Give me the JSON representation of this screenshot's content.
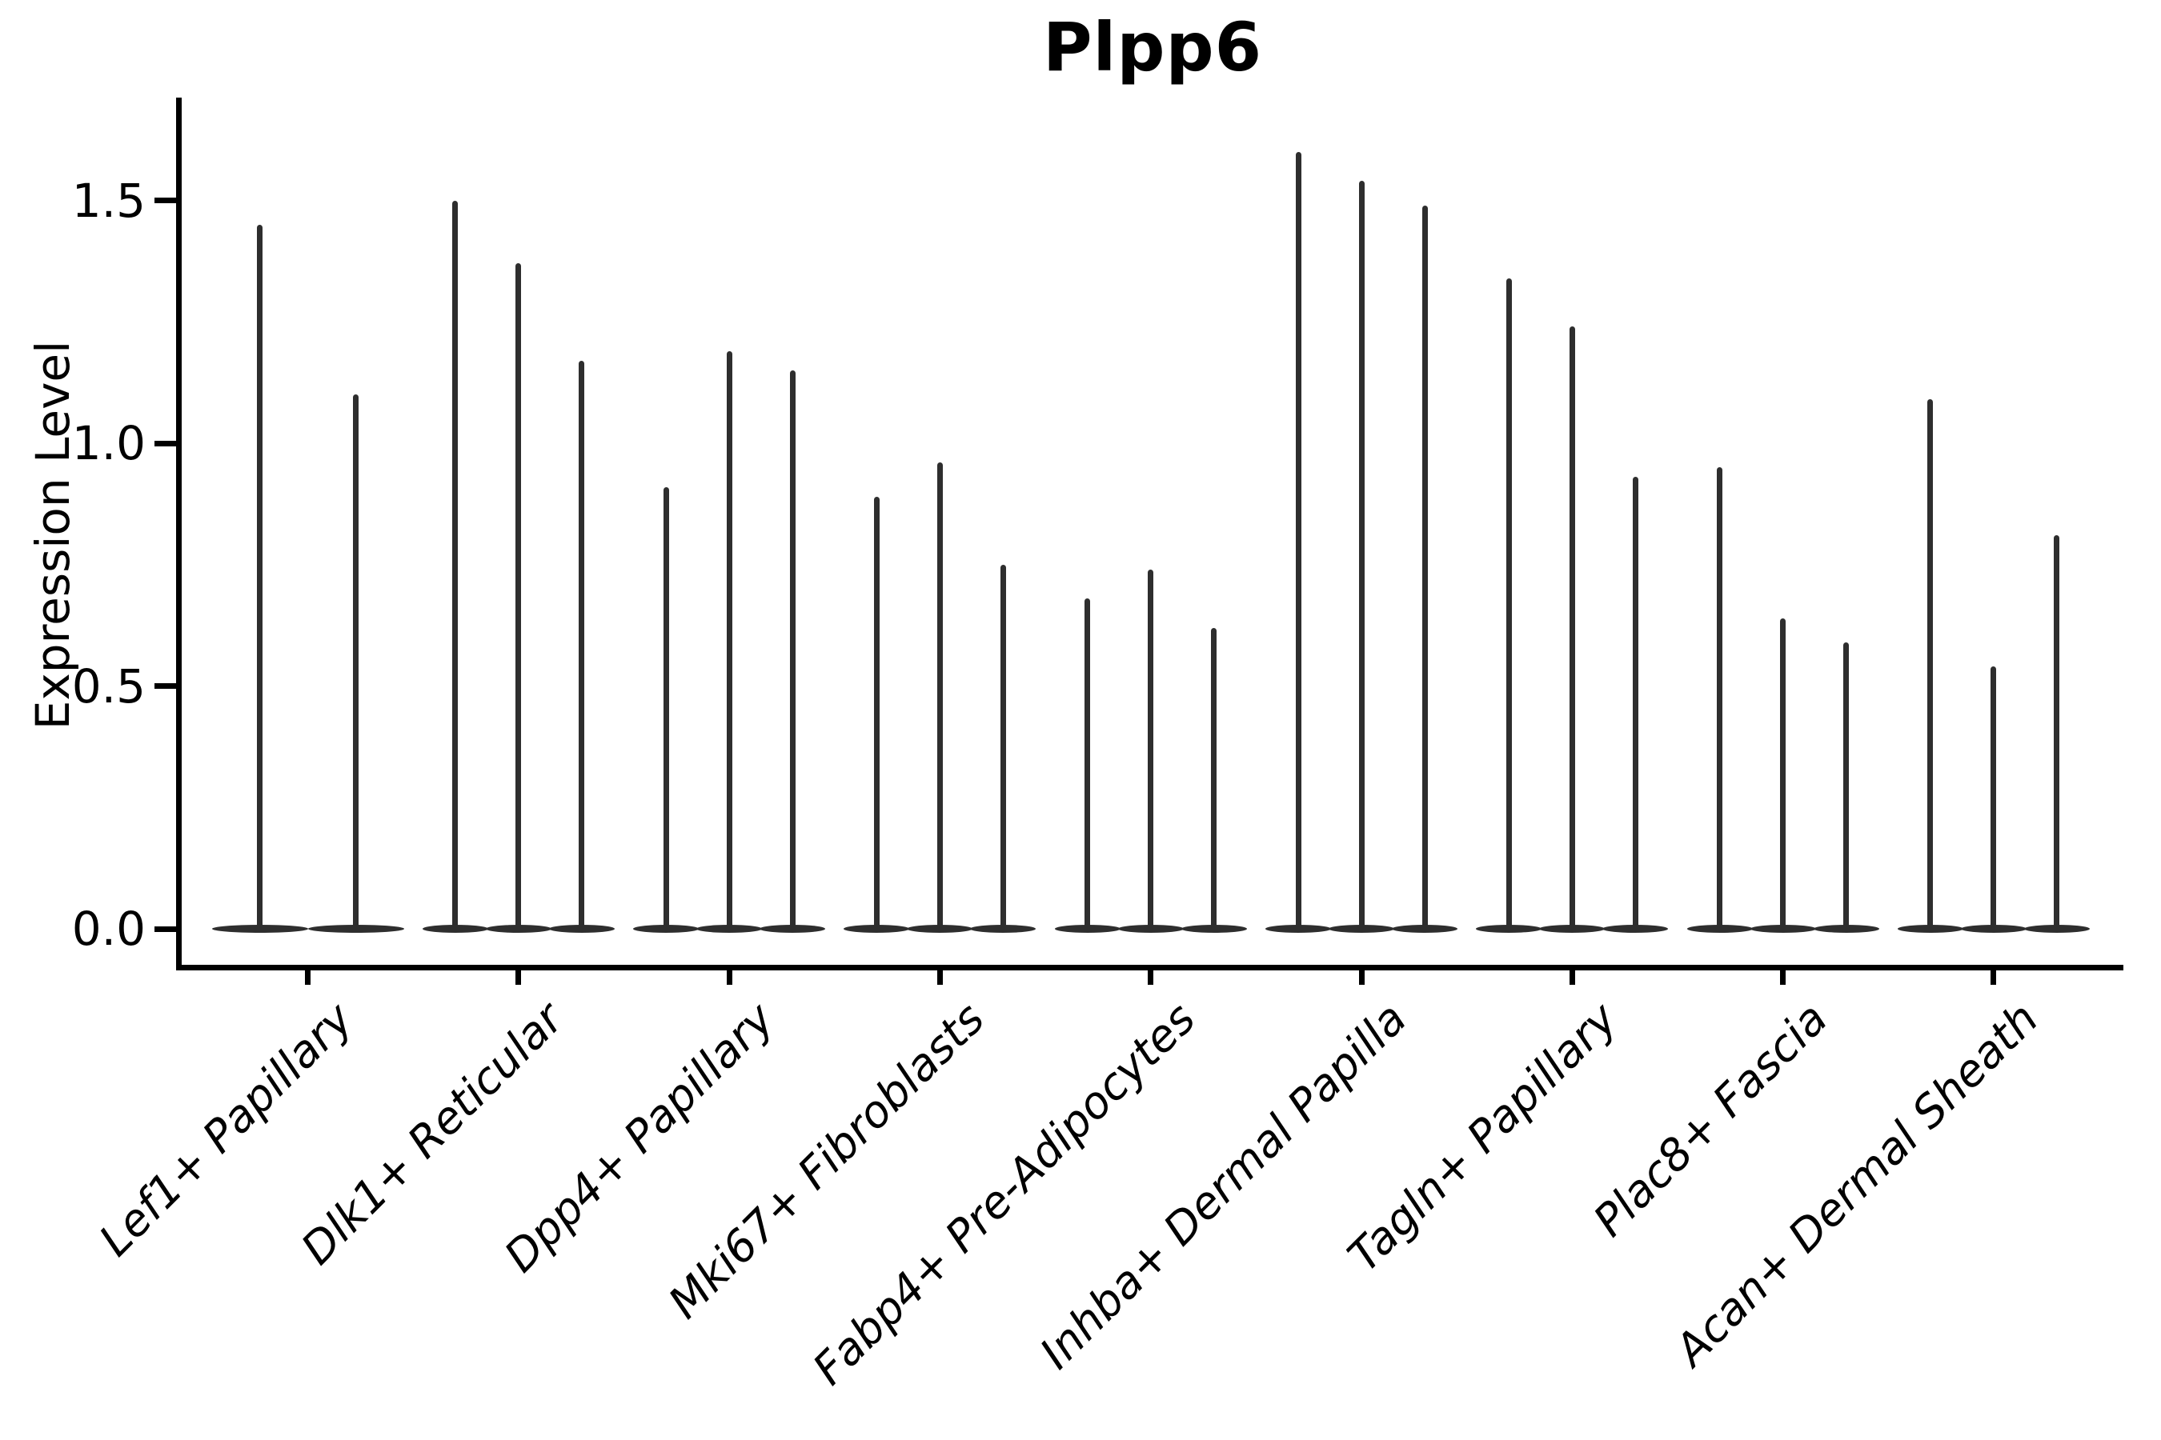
{
  "chart_data": {
    "type": "violin",
    "title": "Plpp6",
    "xlabel": "",
    "ylabel": "Expression Level",
    "ytick_labels": [
      "0.0",
      "0.5",
      "1.0",
      "1.5"
    ],
    "ylim": [
      -0.08,
      1.71
    ],
    "grid": false,
    "legend": null,
    "violin_color": "#2e2e2e",
    "axis_color": "#000000",
    "categories": [
      "Lef1+ Papillary",
      "Dlk1+ Reticular",
      "Dpp4+ Papillary",
      "Mki67+ Fibroblasts",
      "Fabp4+ Pre-Adipocytes",
      "Inhba+ Dermal Papilla",
      "Tagln+ Papillary",
      "Plac8+ Fascia",
      "Acan+ Dermal Sheath"
    ],
    "groups": [
      {
        "label": "Lef1+ Papillary",
        "violin_max_values": [
          1.45,
          1.1
        ]
      },
      {
        "label": "Dlk1+ Reticular",
        "violin_max_values": [
          1.5,
          1.37,
          1.17
        ]
      },
      {
        "label": "Dpp4+ Papillary",
        "violin_max_values": [
          0.91,
          1.19,
          1.15
        ]
      },
      {
        "label": "Mki67+ Fibroblasts",
        "violin_max_values": [
          0.89,
          0.96,
          0.75
        ]
      },
      {
        "label": "Fabp4+ Pre-Adipocytes",
        "violin_max_values": [
          0.68,
          0.74,
          0.62
        ]
      },
      {
        "label": "Inhba+ Dermal Papilla",
        "violin_max_values": [
          1.6,
          1.54,
          1.49
        ]
      },
      {
        "label": "Tagln+ Papillary",
        "violin_max_values": [
          1.34,
          1.24,
          0.93
        ]
      },
      {
        "label": "Plac8+ Fascia",
        "violin_max_values": [
          0.95,
          0.64,
          0.59
        ]
      },
      {
        "label": "Acan+ Dermal Sheath",
        "violin_max_values": [
          1.09,
          0.54,
          0.81
        ]
      }
    ],
    "violin_body_note": "each violin is a flat lens at 0 with a thin spike up to its max value"
  }
}
